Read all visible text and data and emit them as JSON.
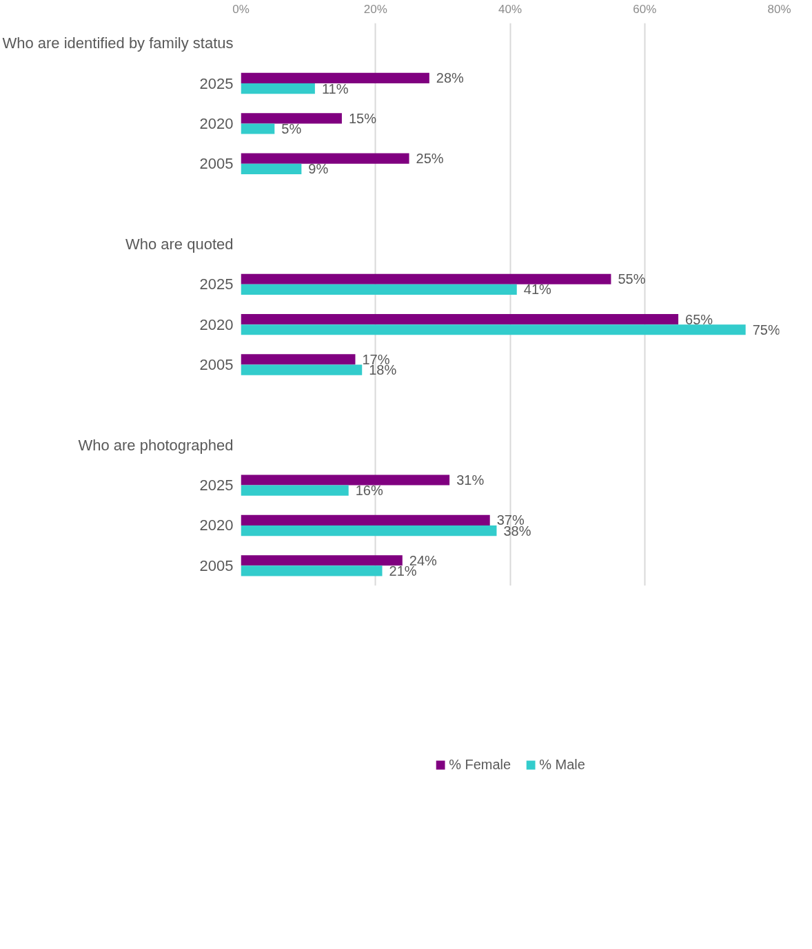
{
  "chart_data": {
    "type": "bar",
    "orientation": "horizontal",
    "categories": [
      "Who are identified by family status",
      "2025",
      "2020",
      "2005",
      null,
      "Who are quoted",
      "2025",
      "2020",
      "2005",
      null,
      "Who are photographed",
      "2025",
      "2020",
      "2005"
    ],
    "series": [
      {
        "name": "% Female",
        "color": "#800080",
        "values": [
          null,
          28,
          15,
          25,
          null,
          null,
          55,
          65,
          17,
          null,
          null,
          31,
          37,
          24
        ],
        "value_labels": [
          null,
          "28%",
          "15%",
          "25%",
          null,
          null,
          "55%",
          "65%",
          "17%",
          null,
          null,
          "31%",
          "37%",
          "24%"
        ]
      },
      {
        "name": "% Male",
        "color": "#33cccc",
        "values": [
          null,
          11,
          5,
          9,
          null,
          null,
          41,
          75,
          18,
          null,
          null,
          16,
          38,
          21
        ],
        "value_labels": [
          null,
          "11%",
          "5%",
          "9%",
          null,
          null,
          "41%",
          "75%",
          "18%",
          null,
          null,
          "16%",
          "38%",
          "21%"
        ]
      }
    ],
    "xlim": [
      0,
      80
    ],
    "xticks": [
      {
        "value": 0,
        "label": "0%"
      },
      {
        "value": 20,
        "label": "20%"
      },
      {
        "value": 40,
        "label": "40%"
      },
      {
        "value": 60,
        "label": "60%"
      },
      {
        "value": 80,
        "label": "80%"
      }
    ],
    "grid": "x",
    "legend": "bottom"
  }
}
